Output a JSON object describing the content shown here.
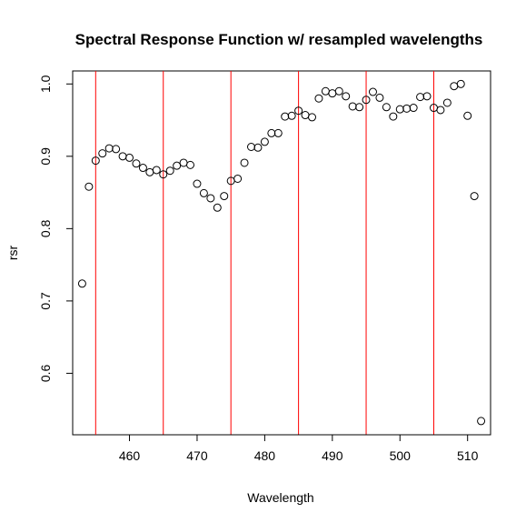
{
  "chart_data": {
    "type": "scatter",
    "title": "Spectral Response Function w/ resampled wavelengths",
    "xlabel": "Wavelength",
    "ylabel": "rsr",
    "xlim": [
      451.6,
      513.4
    ],
    "ylim": [
      0.515,
      1.018
    ],
    "xticks": [
      460,
      470,
      480,
      490,
      500,
      510
    ],
    "yticks": [
      0.6,
      0.7,
      0.8,
      0.9,
      1.0
    ],
    "ytick_labels": [
      "0.6",
      "0.7",
      "0.8",
      "0.9",
      "1.0"
    ],
    "grid": false,
    "vlines": {
      "x": [
        455,
        465,
        475,
        485,
        495,
        505
      ],
      "color": "#ff0000"
    },
    "x": [
      453,
      454,
      455,
      456,
      457,
      458,
      459,
      460,
      461,
      462,
      463,
      464,
      465,
      466,
      467,
      468,
      469,
      470,
      471,
      472,
      473,
      474,
      475,
      476,
      477,
      478,
      479,
      480,
      481,
      482,
      483,
      484,
      485,
      486,
      487,
      488,
      489,
      490,
      491,
      492,
      493,
      494,
      495,
      496,
      497,
      498,
      499,
      500,
      501,
      502,
      503,
      504,
      505,
      506,
      507,
      508,
      509,
      510,
      511,
      512
    ],
    "y": [
      0.724,
      0.858,
      0.894,
      0.904,
      0.911,
      0.91,
      0.9,
      0.898,
      0.89,
      0.884,
      0.878,
      0.881,
      0.875,
      0.88,
      0.887,
      0.891,
      0.888,
      0.862,
      0.849,
      0.842,
      0.829,
      0.845,
      0.866,
      0.869,
      0.891,
      0.913,
      0.912,
      0.92,
      0.932,
      0.932,
      0.955,
      0.956,
      0.963,
      0.957,
      0.954,
      0.98,
      0.99,
      0.987,
      0.99,
      0.983,
      0.969,
      0.968,
      0.978,
      0.989,
      0.981,
      0.968,
      0.955,
      0.965,
      0.966,
      0.967,
      0.982,
      0.983,
      0.967,
      0.964,
      0.974,
      0.997,
      1.0,
      0.956,
      0.845,
      0.534
    ],
    "marker": "open-circle"
  }
}
